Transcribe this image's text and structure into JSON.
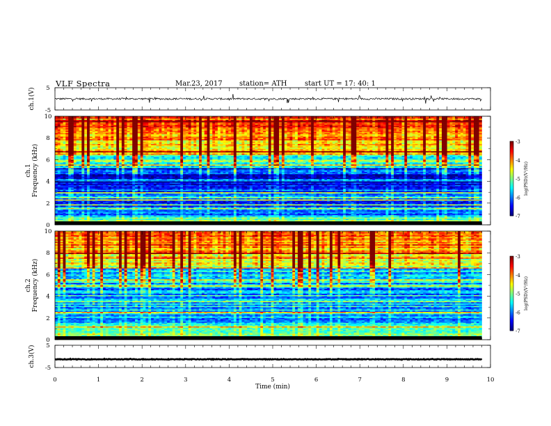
{
  "header": {
    "title": "VLF  Spectra",
    "date": "Mar.23, 2017",
    "station": "station= ATH",
    "start": "start  UT  =    17: 40: 1"
  },
  "chart_data": [
    {
      "type": "line",
      "panel": "ch1-waveform",
      "ylabel": "ch.1(V)",
      "ylim": [
        -5,
        5
      ],
      "yticks": [
        5,
        -5
      ],
      "xlim": [
        0,
        10
      ],
      "series": [
        {
          "baseline": 0,
          "noise_amplitude": 0.4,
          "x_end": 9.8,
          "color": "#000000"
        }
      ]
    },
    {
      "type": "heatmap",
      "panel": "ch1-spectrogram",
      "ylabel": "ch.1\nFrequency  (kHz)",
      "ylim": [
        0,
        10
      ],
      "yticks": [
        0,
        2,
        4,
        6,
        8,
        10
      ],
      "xlim": [
        0,
        10
      ],
      "x_end": 9.8,
      "colorbar": {
        "label": "log(PSD)(V²/Hz)",
        "ticks": [
          -3,
          -4,
          -5,
          -6,
          -7
        ],
        "range": [
          -7,
          -3
        ]
      }
    },
    {
      "type": "heatmap",
      "panel": "ch2-spectrogram",
      "ylabel": "ch.2\nFrequency  (kHz)",
      "ylim": [
        0,
        10
      ],
      "yticks": [
        0,
        2,
        4,
        6,
        8,
        10
      ],
      "xlim": [
        0,
        10
      ],
      "x_end": 9.8,
      "colorbar": {
        "label": "log(PSD)(V²/Hz)",
        "ticks": [
          -3,
          -4,
          -5,
          -6,
          -7
        ],
        "range": [
          -7,
          -3
        ]
      }
    },
    {
      "type": "line",
      "panel": "ch3-waveform",
      "ylabel": "ch.3(V)",
      "ylim": [
        -5,
        5
      ],
      "yticks": [
        5,
        -5
      ],
      "xlim": [
        0,
        10
      ],
      "series": [
        {
          "baseline": -1.3,
          "noise_amplitude": 0.15,
          "x_end": 9.8,
          "color": "#000000"
        }
      ]
    }
  ],
  "xaxis": {
    "label": "Time  (min)",
    "ticks": [
      "0",
      "1",
      "2",
      "3",
      "4",
      "5",
      "6",
      "7",
      "8",
      "9",
      "10"
    ]
  }
}
